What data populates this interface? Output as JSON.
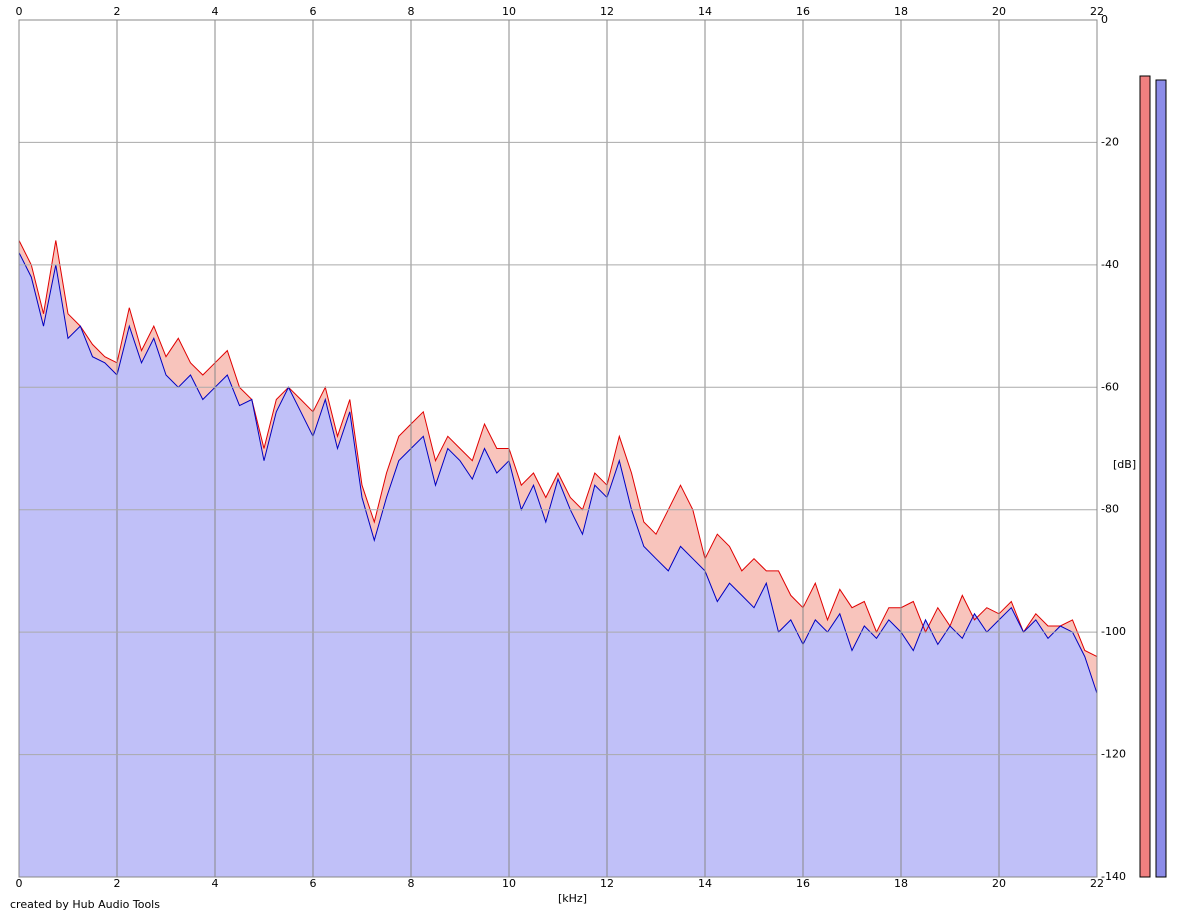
{
  "chart_data": {
    "type": "area",
    "x_label": "[kHz]",
    "y_label": "[dB]",
    "footer": "created by Hub Audio Tools",
    "xlim": [
      0,
      22
    ],
    "xticks": [
      0,
      2,
      4,
      6,
      8,
      10,
      12,
      14,
      16,
      18,
      20,
      22
    ],
    "ylim": [
      -140,
      0
    ],
    "yticks": [
      0,
      -20,
      -40,
      -60,
      -80,
      -100,
      -120,
      -140
    ],
    "grid": true,
    "x": [
      0,
      0.25,
      0.5,
      0.75,
      1,
      1.25,
      1.5,
      1.75,
      2,
      2.25,
      2.5,
      2.75,
      3,
      3.25,
      3.5,
      3.75,
      4,
      4.25,
      4.5,
      4.75,
      5,
      5.25,
      5.5,
      5.75,
      6,
      6.25,
      6.5,
      6.75,
      7,
      7.25,
      7.5,
      7.75,
      8,
      8.25,
      8.5,
      8.75,
      9,
      9.25,
      9.5,
      9.75,
      10,
      10.25,
      10.5,
      10.75,
      11,
      11.25,
      11.5,
      11.75,
      12,
      12.25,
      12.5,
      12.75,
      13,
      13.25,
      13.5,
      13.75,
      14,
      14.25,
      14.5,
      14.75,
      15,
      15.25,
      15.5,
      15.75,
      16,
      16.25,
      16.5,
      16.75,
      17,
      17.25,
      17.5,
      17.75,
      18,
      18.25,
      18.5,
      18.75,
      19,
      19.25,
      19.5,
      19.75,
      20,
      20.25,
      20.5,
      20.75,
      21,
      21.25,
      21.5,
      21.75,
      22
    ],
    "series": [
      {
        "color": "#e00000",
        "fill": "#f8c4bc",
        "values": [
          -36,
          -40,
          -48,
          -36,
          -48,
          -50,
          -53,
          -55,
          -56,
          -47,
          -54,
          -50,
          -55,
          -52,
          -56,
          -58,
          -56,
          -54,
          -60,
          -62,
          -70,
          -62,
          -60,
          -62,
          -64,
          -60,
          -68,
          -62,
          -76,
          -82,
          -74,
          -68,
          -66,
          -64,
          -72,
          -68,
          -70,
          -72,
          -66,
          -70,
          -70,
          -76,
          -74,
          -78,
          -74,
          -78,
          -80,
          -74,
          -76,
          -68,
          -74,
          -82,
          -84,
          -80,
          -76,
          -80,
          -88,
          -84,
          -86,
          -90,
          -88,
          -90,
          -90,
          -94,
          -96,
          -92,
          -98,
          -93,
          -96,
          -95,
          -100,
          -96,
          -96,
          -95,
          -100,
          -96,
          -99,
          -94,
          -98,
          -96,
          -97,
          -95,
          -100,
          -97,
          -99,
          -99,
          -98,
          -103,
          -104
        ]
      },
      {
        "color": "#0000c0",
        "fill": "#c0c0f8",
        "values": [
          -38,
          -42,
          -50,
          -40,
          -52,
          -50,
          -55,
          -56,
          -58,
          -50,
          -56,
          -52,
          -58,
          -60,
          -58,
          -62,
          -60,
          -58,
          -63,
          -62,
          -72,
          -64,
          -60,
          -64,
          -68,
          -62,
          -70,
          -64,
          -78,
          -85,
          -78,
          -72,
          -70,
          -68,
          -76,
          -70,
          -72,
          -75,
          -70,
          -74,
          -72,
          -80,
          -76,
          -82,
          -75,
          -80,
          -84,
          -76,
          -78,
          -72,
          -80,
          -86,
          -88,
          -90,
          -86,
          -88,
          -90,
          -95,
          -92,
          -94,
          -96,
          -92,
          -100,
          -98,
          -102,
          -98,
          -100,
          -97,
          -103,
          -99,
          -101,
          -98,
          -100,
          -103,
          -98,
          -102,
          -99,
          -101,
          -97,
          -100,
          -98,
          -96,
          -100,
          -98,
          -101,
          -99,
          -100,
          -104,
          -110
        ]
      }
    ]
  }
}
